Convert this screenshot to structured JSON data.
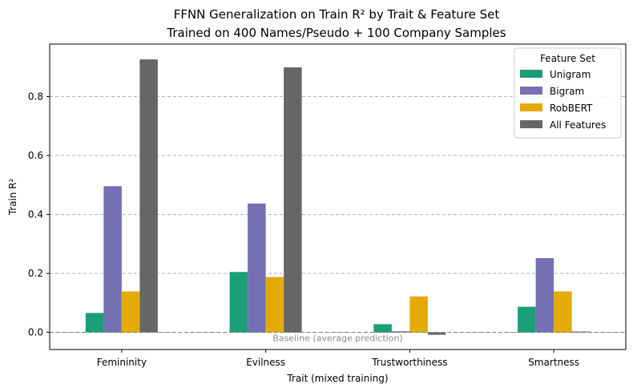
{
  "chart_data": {
    "type": "bar",
    "title_line1": "FFNN Generalization on Train R² by Trait & Feature Set",
    "title_line2": "Trained on 400 Names/Pseudo + 100 Company Samples",
    "xlabel": "Trait (mixed training)",
    "ylabel": "Train R²",
    "categories": [
      "Femininity",
      "Evilness",
      "Trustworthiness",
      "Smartness"
    ],
    "ylim": [
      -0.058,
      0.978
    ],
    "yticks": [
      0.0,
      0.2,
      0.4,
      0.6,
      0.8
    ],
    "ytick_labels": [
      "0.0",
      "0.2",
      "0.4",
      "0.6",
      "0.8"
    ],
    "grid": "y dashed",
    "legend_title": "Feature Set",
    "legend_position": "top-right",
    "baseline": {
      "value": 0.0,
      "label": "Baseline (average prediction)"
    },
    "series": [
      {
        "name": "Unigram",
        "color": "#1b9e77",
        "values": [
          0.066,
          0.205,
          0.028,
          0.087
        ]
      },
      {
        "name": "Bigram",
        "color": "#7570b3",
        "values": [
          0.496,
          0.437,
          0.004,
          0.252
        ]
      },
      {
        "name": "RobBERT",
        "color": "#e6ab02",
        "values": [
          0.139,
          0.188,
          0.122,
          0.139
        ]
      },
      {
        "name": "All Features",
        "color": "#666666",
        "values": [
          0.926,
          0.899,
          -0.008,
          0.003
        ]
      }
    ]
  }
}
